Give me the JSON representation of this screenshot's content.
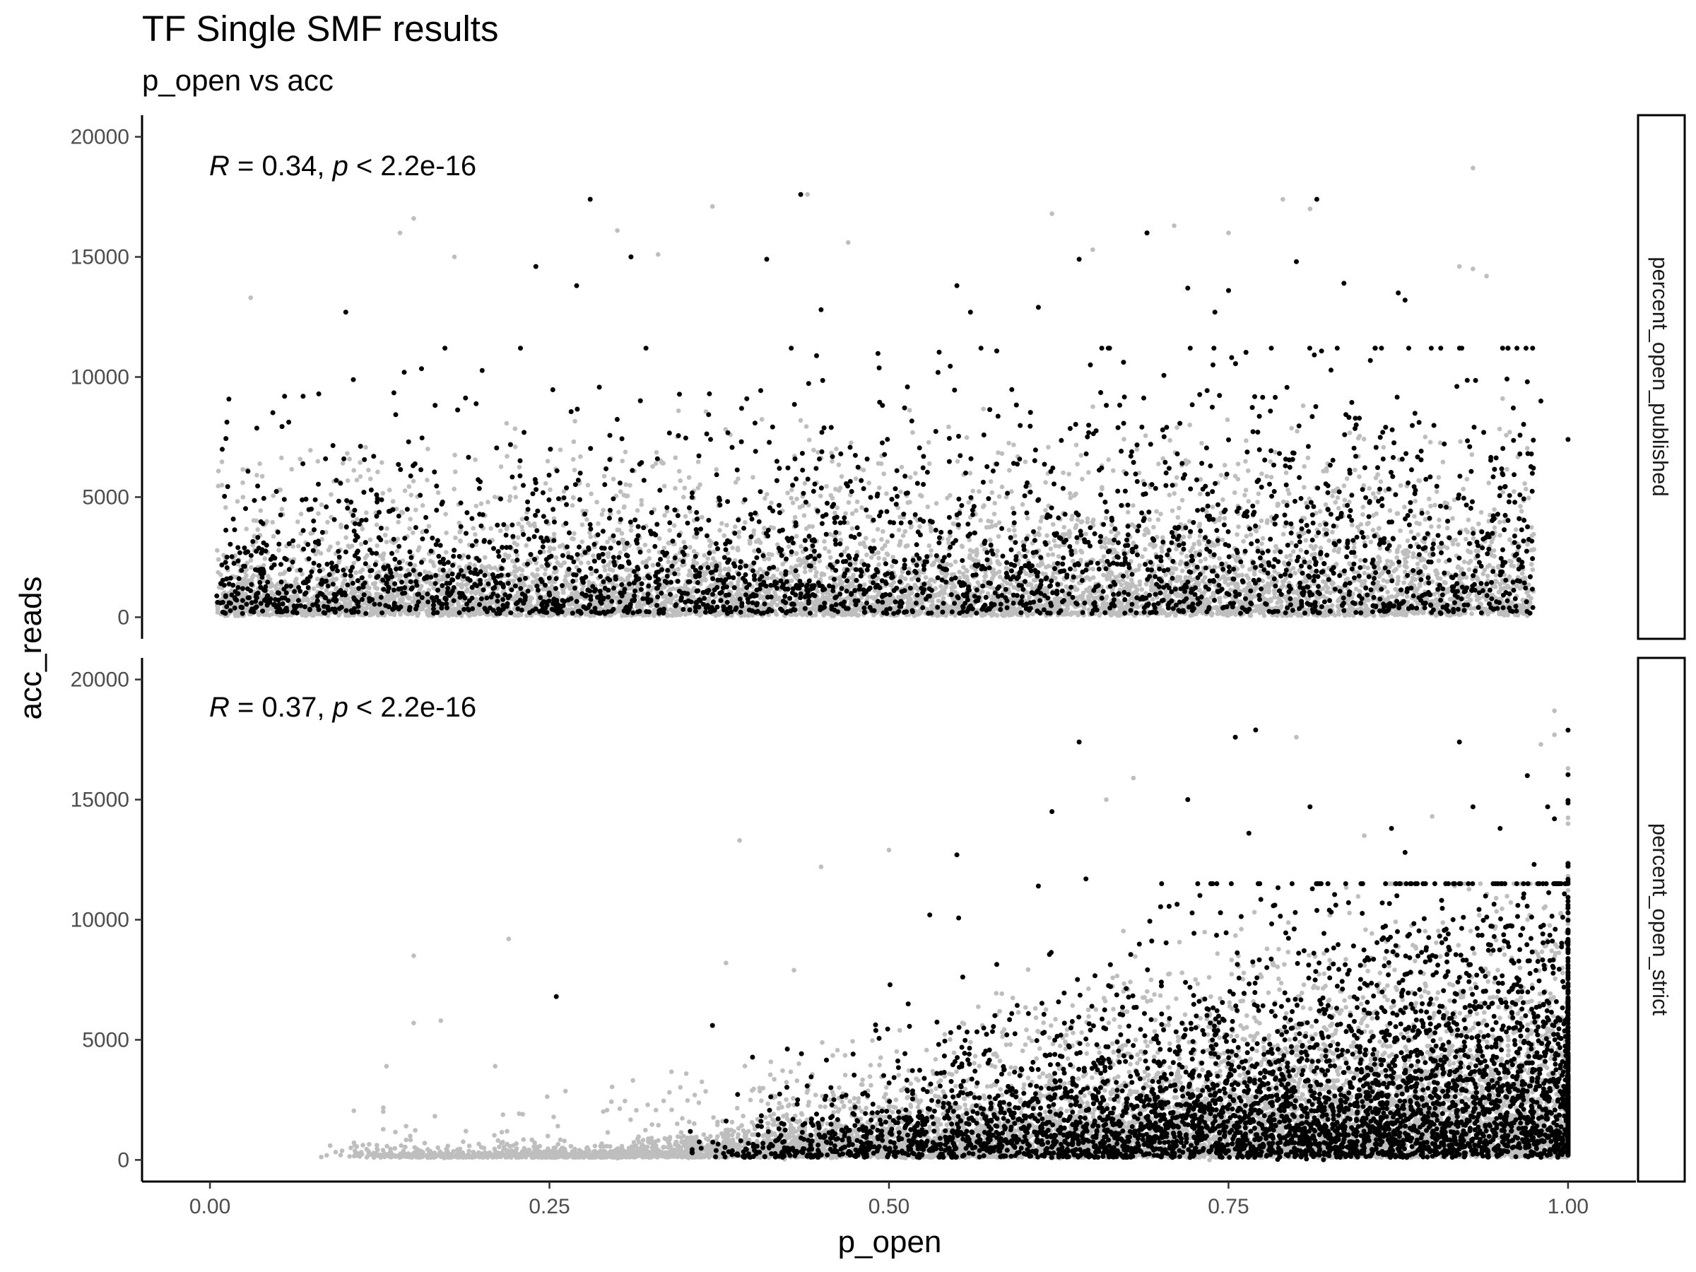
{
  "chart_data": {
    "type": "scatter",
    "title": "TF Single SMF results",
    "subtitle": "p_open vs acc",
    "xlabel": "p_open",
    "ylabel": "acc_reads",
    "xlim": [
      -0.05,
      1.05
    ],
    "ylim": [
      -900,
      20900
    ],
    "x_ticks": [
      0,
      0.25,
      0.5,
      0.75,
      1.0
    ],
    "x_tick_labels": [
      "0.00",
      "0.25",
      "0.50",
      "0.75",
      "1.00"
    ],
    "y_ticks": [
      0,
      5000,
      10000,
      15000,
      20000
    ],
    "y_tick_labels": [
      "0",
      "5000",
      "10000",
      "15000",
      "20000"
    ],
    "grid": false,
    "colors": {
      "background_points": "#bebebe",
      "highlight_points": "#000000",
      "axis": "#000000",
      "strip_border": "#000000"
    },
    "point_groups": [
      "all",
      "highlighted"
    ],
    "facets": [
      {
        "strip_label": "percent_open_published",
        "annotation": {
          "r_symbol": "R",
          "r_text": " = 0.34, ",
          "p_symbol": "p",
          "p_text": " < 2.2e-16"
        },
        "outliers_highlighted": [
          [
            0.1,
            12700
          ],
          [
            0.24,
            14600
          ],
          [
            0.27,
            13800
          ],
          [
            0.28,
            17400
          ],
          [
            0.31,
            15000
          ],
          [
            0.41,
            14900
          ],
          [
            0.435,
            17600
          ],
          [
            0.45,
            12800
          ],
          [
            0.55,
            13800
          ],
          [
            0.56,
            12700
          ],
          [
            0.64,
            14900
          ],
          [
            0.69,
            16000
          ],
          [
            0.72,
            13700
          ],
          [
            0.74,
            12700
          ],
          [
            0.75,
            13600
          ],
          [
            0.8,
            14800
          ],
          [
            0.815,
            17400
          ],
          [
            0.835,
            13900
          ],
          [
            0.875,
            13500
          ],
          [
            0.88,
            13200
          ],
          [
            1.0,
            7400
          ],
          [
            0.98,
            9000
          ],
          [
            0.97,
            9800
          ],
          [
            0.61,
            12900
          ]
        ],
        "outliers_background": [
          [
            0.93,
            18700
          ],
          [
            0.44,
            17600
          ],
          [
            0.37,
            17100
          ],
          [
            0.15,
            16600
          ],
          [
            0.14,
            16000
          ],
          [
            0.62,
            16800
          ],
          [
            0.79,
            17400
          ],
          [
            0.81,
            17000
          ],
          [
            0.71,
            16300
          ],
          [
            0.75,
            16000
          ],
          [
            0.3,
            16100
          ],
          [
            0.03,
            13300
          ],
          [
            0.18,
            15000
          ],
          [
            0.92,
            14600
          ],
          [
            0.93,
            14500
          ],
          [
            0.94,
            14200
          ],
          [
            0.65,
            15300
          ],
          [
            0.47,
            15600
          ],
          [
            0.33,
            15100
          ]
        ]
      },
      {
        "strip_label": "percent_open_strict",
        "annotation": {
          "r_symbol": "R",
          "r_text": " = 0.37, ",
          "p_symbol": "p",
          "p_text": " < 2.2e-16"
        },
        "outliers_highlighted": [
          [
            0.255,
            6800
          ],
          [
            0.37,
            5600
          ],
          [
            0.55,
            12700
          ],
          [
            0.62,
            14500
          ],
          [
            0.64,
            17400
          ],
          [
            0.645,
            11700
          ],
          [
            0.72,
            15000
          ],
          [
            0.755,
            17600
          ],
          [
            0.765,
            13600
          ],
          [
            0.77,
            17900
          ],
          [
            0.81,
            14700
          ],
          [
            0.87,
            13800
          ],
          [
            0.88,
            12800
          ],
          [
            0.92,
            17400
          ],
          [
            0.97,
            16000
          ],
          [
            0.93,
            14700
          ],
          [
            0.95,
            13800
          ],
          [
            0.985,
            14700
          ],
          [
            0.99,
            14200
          ],
          [
            0.975,
            12300
          ],
          [
            0.61,
            11400
          ],
          [
            0.53,
            10200
          ]
        ],
        "outliers_background": [
          [
            0.15,
            8500
          ],
          [
            0.22,
            9200
          ],
          [
            0.39,
            13300
          ],
          [
            0.45,
            12200
          ],
          [
            0.5,
            12900
          ],
          [
            0.68,
            15900
          ],
          [
            0.8,
            17600
          ],
          [
            0.99,
            18700
          ],
          [
            1.0,
            16300
          ],
          [
            0.99,
            17700
          ],
          [
            0.98,
            17300
          ],
          [
            0.66,
            15000
          ],
          [
            0.85,
            13500
          ],
          [
            0.9,
            14300
          ],
          [
            0.17,
            5800
          ],
          [
            0.15,
            5700
          ],
          [
            0.13,
            3900
          ],
          [
            0.21,
            3900
          ],
          [
            0.38,
            8200
          ],
          [
            0.43,
            7900
          ]
        ]
      }
    ]
  }
}
